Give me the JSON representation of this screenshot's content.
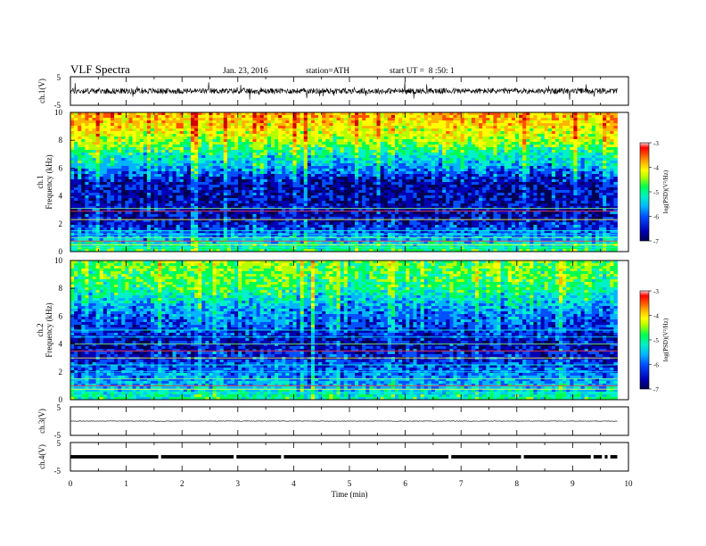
{
  "header": {
    "title": "VLF Spectra",
    "date": "Jan. 23, 2016",
    "station": "station=ATH",
    "start": "start UT =  8 :50: 1"
  },
  "colors": {
    "colormap": [
      "#000050",
      "#0000b4",
      "#0050ff",
      "#00b4ff",
      "#00f0c8",
      "#00ff50",
      "#b4ff00",
      "#ffff00",
      "#ffb400",
      "#ff5000",
      "#d20000"
    ],
    "waveform": "#000000"
  },
  "chart_data": [
    {
      "type": "line",
      "panel": "ch1-waveform",
      "ylabel": "ch.1(V)",
      "yticks": [
        "5",
        "-5"
      ],
      "ylim": [
        -5,
        5
      ],
      "xlim": [
        0,
        10
      ],
      "description_values": {
        "baseline_v": 0,
        "typical_amplitude_v": 1,
        "spike_amplitude_v": 3
      }
    },
    {
      "type": "heatmap",
      "panel": "ch1-spectrogram",
      "ylabel_channel": "ch.1",
      "ylabel": "Frequency (kHz)",
      "yticks": [
        "0",
        "2",
        "4",
        "6",
        "8",
        "10"
      ],
      "ylim": [
        0,
        10
      ],
      "xlim": [
        0,
        9.8
      ],
      "colorbar": {
        "label": "log(PSD)(V²/Hz)",
        "ticks": [
          "-3",
          "-4",
          "-5",
          "-6",
          "-7"
        ],
        "range": [
          -7,
          -3
        ]
      },
      "profile_khz": [
        0,
        1,
        2,
        3,
        4,
        5,
        6,
        7,
        8,
        9,
        10
      ],
      "profile_logpsd": [
        -5.0,
        -5.8,
        -6.4,
        -6.5,
        -6.5,
        -6.5,
        -5.8,
        -5.3,
        -4.6,
        -4.2,
        -3.9
      ],
      "lines_khz": [
        0.3,
        0.5,
        0.75,
        1.0,
        1.25,
        1.5,
        2.3,
        2.9,
        3.1
      ]
    },
    {
      "type": "heatmap",
      "panel": "ch2-spectrogram",
      "ylabel_channel": "ch.2",
      "ylabel": "Frequency (kHz)",
      "yticks": [
        "0",
        "2",
        "4",
        "6",
        "8",
        "10"
      ],
      "ylim": [
        0,
        10
      ],
      "xlim": [
        0,
        9.8
      ],
      "colorbar": {
        "label": "log(PSD)(V²/Hz)",
        "ticks": [
          "-3",
          "-4",
          "-5",
          "-6",
          "-7"
        ],
        "range": [
          -7,
          -3
        ]
      },
      "profile_khz": [
        0,
        1,
        2,
        3,
        4,
        5,
        6,
        7,
        8,
        9,
        10
      ],
      "profile_logpsd": [
        -5.2,
        -5.7,
        -6.0,
        -6.3,
        -6.5,
        -6.2,
        -6.0,
        -5.6,
        -5.1,
        -4.9,
        -4.8
      ],
      "lines_khz": [
        0.5,
        0.75,
        1.0,
        1.5,
        2.0,
        2.5,
        3.0,
        3.5,
        4.0,
        4.5,
        5.0
      ]
    },
    {
      "type": "line",
      "panel": "ch3-waveform",
      "ylabel": "ch.3(V)",
      "yticks": [
        "5",
        "-5"
      ],
      "ylim": [
        -5,
        5
      ],
      "xlim": [
        0,
        10
      ],
      "description_values": {
        "baseline_v": 0,
        "typical_amplitude_v": 0.1
      }
    },
    {
      "type": "line",
      "panel": "ch4-waveform",
      "ylabel": "ch.4(V)",
      "yticks": [
        "5",
        "-5"
      ],
      "ylim": [
        -5,
        5
      ],
      "xlim": [
        0,
        10
      ],
      "description_values": {
        "baseline_v": 0,
        "typical_amplitude_v": 0.6,
        "gaps_min": [
          1.6,
          2.95,
          3.8,
          6.8,
          8.1,
          9.35,
          9.55,
          9.65
        ]
      }
    }
  ],
  "time_axis": {
    "label": "Time (min)",
    "ticks": [
      "0",
      "1",
      "2",
      "3",
      "4",
      "5",
      "6",
      "7",
      "8",
      "9",
      "10"
    ],
    "range": [
      0,
      10
    ]
  }
}
